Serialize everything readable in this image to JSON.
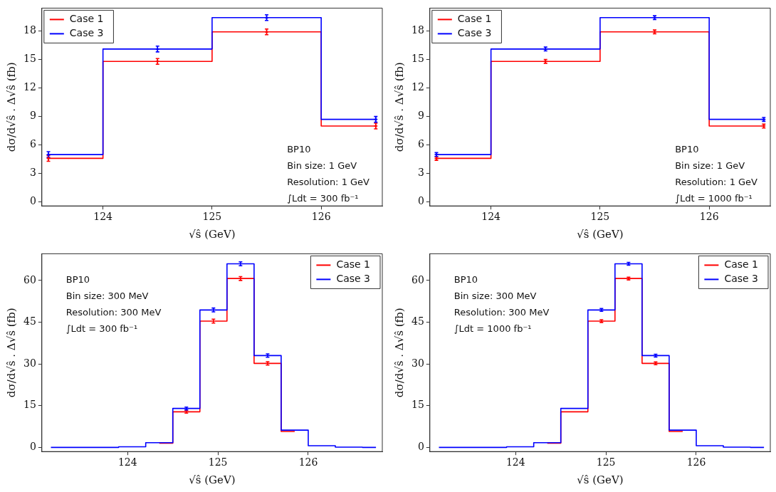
{
  "chart_data": [
    {
      "type": "step",
      "xlabel": "√ŝ (GeV)",
      "ylabel": "dσ/d√ŝ . Δ√ŝ (fb)",
      "x": [
        123.5,
        124.5,
        125.5,
        126.5
      ],
      "xlim": [
        123.44,
        126.56
      ],
      "xticks": [
        124,
        125,
        126
      ],
      "ylim": [
        -0.4,
        20.4
      ],
      "yticks": [
        0,
        3,
        6,
        9,
        12,
        15,
        18
      ],
      "legend": "top left",
      "marker": "cross",
      "annotations": [
        "BP10",
        "Bin size: 1 GeV",
        "Resolution: 1 GeV",
        "∫Ldt = 300 fb⁻¹"
      ],
      "series": [
        {
          "name": "Case 1",
          "color": "#ff0000",
          "values": [
            4.6,
            14.8,
            17.9,
            8.0
          ],
          "errors": [
            0.3,
            0.3,
            0.3,
            0.3
          ]
        },
        {
          "name": "Case 3",
          "color": "#0000ff",
          "values": [
            5.0,
            16.1,
            19.4,
            8.7
          ],
          "errors": [
            0.3,
            0.3,
            0.3,
            0.3
          ]
        }
      ]
    },
    {
      "type": "step",
      "xlabel": "√ŝ (GeV)",
      "ylabel": "dσ/d√ŝ . Δ√ŝ (fb)",
      "x": [
        123.5,
        124.5,
        125.5,
        126.5
      ],
      "xlim": [
        123.44,
        126.56
      ],
      "xticks": [
        124,
        125,
        126
      ],
      "ylim": [
        -0.4,
        20.4
      ],
      "yticks": [
        0,
        3,
        6,
        9,
        12,
        15,
        18
      ],
      "legend": "top left",
      "marker": "cross",
      "annotations": [
        "BP10",
        "Bin size: 1 GeV",
        "Resolution: 1 GeV",
        "∫Ldt = 1000 fb⁻¹"
      ],
      "series": [
        {
          "name": "Case 1",
          "color": "#ff0000",
          "values": [
            4.6,
            14.8,
            17.9,
            8.0
          ],
          "errors": [
            0.2,
            0.2,
            0.2,
            0.2
          ]
        },
        {
          "name": "Case 3",
          "color": "#0000ff",
          "values": [
            5.0,
            16.1,
            19.4,
            8.7
          ],
          "errors": [
            0.2,
            0.2,
            0.2,
            0.2
          ]
        }
      ]
    },
    {
      "type": "step",
      "xlabel": "√ŝ (GeV)",
      "ylabel": "dσ/d√ŝ . Δ√ŝ (fb)",
      "x": [
        123.15,
        123.45,
        123.75,
        124.05,
        124.35,
        124.65,
        124.95,
        125.25,
        125.55,
        125.85,
        126.15,
        126.45,
        126.75
      ],
      "xlim": [
        123.05,
        126.82
      ],
      "xticks": [
        124,
        125,
        126
      ],
      "ylim": [
        -1.5,
        69.6
      ],
      "yticks": [
        0,
        15,
        30,
        45,
        60
      ],
      "legend": "top right",
      "annotations": [
        "BP10",
        "Bin size: 300 MeV",
        "Resolution: 300 MeV",
        "∫Ldt = 300 fb⁻¹"
      ],
      "series": [
        {
          "name": "Case 1",
          "color": "#ff0000",
          "values": [
            null,
            null,
            null,
            null,
            1.5,
            12.8,
            45.4,
            60.7,
            30.2,
            5.7,
            null,
            null,
            null
          ],
          "errors": [
            null,
            null,
            null,
            null,
            null,
            0.5,
            0.7,
            0.7,
            0.6,
            null,
            null,
            null,
            null
          ]
        },
        {
          "name": "Case 3",
          "color": "#0000ff",
          "values": [
            0,
            0,
            0,
            0.2,
            1.7,
            14.0,
            49.4,
            66.0,
            33.0,
            6.2,
            0.6,
            0.1,
            0
          ],
          "errors": [
            null,
            null,
            null,
            null,
            null,
            0.5,
            0.7,
            0.7,
            0.6,
            null,
            null,
            null,
            null
          ]
        }
      ]
    },
    {
      "type": "step",
      "xlabel": "√ŝ (GeV)",
      "ylabel": "dσ/d√ŝ . Δ√ŝ (fb)",
      "x": [
        123.15,
        123.45,
        123.75,
        124.05,
        124.35,
        124.65,
        124.95,
        125.25,
        125.55,
        125.85,
        126.15,
        126.45,
        126.75
      ],
      "xlim": [
        123.05,
        126.82
      ],
      "xticks": [
        124,
        125,
        126
      ],
      "ylim": [
        -1.5,
        69.6
      ],
      "yticks": [
        0,
        15,
        30,
        45,
        60
      ],
      "legend": "top right",
      "annotations": [
        "BP10",
        "Bin size: 300 MeV",
        "Resolution: 300 MeV",
        "∫Ldt = 1000 fb⁻¹"
      ],
      "series": [
        {
          "name": "Case 1",
          "color": "#ff0000",
          "values": [
            null,
            null,
            null,
            null,
            1.5,
            12.8,
            45.4,
            60.7,
            30.2,
            5.7,
            null,
            null,
            null
          ],
          "errors": [
            null,
            null,
            null,
            null,
            null,
            null,
            0.5,
            0.5,
            0.5,
            null,
            null,
            null,
            null
          ]
        },
        {
          "name": "Case 3",
          "color": "#0000ff",
          "values": [
            0,
            0,
            0,
            0.2,
            1.7,
            14.0,
            49.4,
            66.0,
            33.0,
            6.2,
            0.6,
            0.1,
            0
          ],
          "errors": [
            null,
            null,
            null,
            null,
            null,
            null,
            0.5,
            0.5,
            0.5,
            null,
            null,
            null,
            null
          ]
        }
      ]
    }
  ]
}
